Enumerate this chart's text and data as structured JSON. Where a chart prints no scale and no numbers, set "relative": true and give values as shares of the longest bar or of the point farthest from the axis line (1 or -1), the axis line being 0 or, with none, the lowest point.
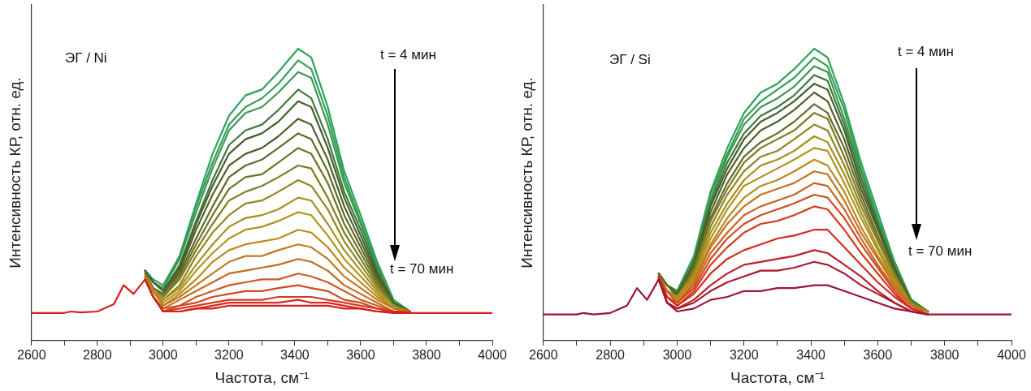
{
  "chart_data": [
    {
      "type": "line",
      "relative": true,
      "xlabel": "Частота, см⁻¹",
      "ylabel": "Интенсивность КР, отн. ед.",
      "annotations": [
        "ЭГ / Ni",
        "t = 4 мин",
        "t = 70 мин"
      ],
      "xlim": [
        2600,
        4000
      ],
      "xticks": [
        2600,
        {
          "value": 2700,
          "label": null
        },
        2800,
        {
          "value": 2900,
          "label": null
        },
        3000,
        {
          "value": 3100,
          "label": null
        },
        3200,
        {
          "value": 3300,
          "label": null
        },
        3400,
        {
          "value": 3500,
          "label": null
        },
        3600,
        {
          "value": 3700,
          "label": null
        },
        3800,
        {
          "value": 3900,
          "label": null
        },
        4000
      ],
      "x": [
        2600,
        2700,
        2720,
        2750,
        2800,
        2850,
        2880,
        2910,
        2945,
        2970,
        3000,
        3050,
        3100,
        3150,
        3200,
        3250,
        3300,
        3350,
        3410,
        3450,
        3500,
        3550,
        3600,
        3650,
        3700,
        3750,
        3800,
        3900,
        4000
      ],
      "series": [
        {
          "color": "#2ea35a",
          "values": [
            null,
            null,
            null,
            null,
            null,
            null,
            null,
            null,
            0.24,
            0.21,
            0.19,
            0.29,
            0.47,
            0.64,
            0.77,
            0.84,
            0.86,
            0.92,
            1.0,
            0.97,
            0.8,
            0.58,
            0.43,
            0.27,
            0.14,
            0.1,
            null,
            null,
            null
          ]
        },
        {
          "color": "#35a055",
          "values": [
            null,
            null,
            null,
            null,
            null,
            null,
            null,
            null,
            0.24,
            0.2,
            0.18,
            0.29,
            0.46,
            0.61,
            0.74,
            0.8,
            0.83,
            0.88,
            0.96,
            0.93,
            0.77,
            0.56,
            0.41,
            0.26,
            0.13,
            0.1,
            null,
            null,
            null
          ]
        },
        {
          "color": "#3c9650",
          "values": [
            null,
            null,
            null,
            null,
            null,
            null,
            null,
            null,
            0.24,
            0.2,
            0.18,
            0.28,
            0.44,
            0.59,
            0.72,
            0.78,
            0.8,
            0.85,
            0.92,
            0.9,
            0.74,
            0.54,
            0.4,
            0.25,
            0.13,
            0.1,
            null,
            null,
            null
          ]
        },
        {
          "color": "#3f7a3a",
          "values": [
            null,
            null,
            null,
            null,
            null,
            null,
            null,
            null,
            0.24,
            0.2,
            0.17,
            0.26,
            0.41,
            0.55,
            0.67,
            0.72,
            0.74,
            0.79,
            0.86,
            0.83,
            0.69,
            0.51,
            0.38,
            0.24,
            0.13,
            0.1,
            null,
            null,
            null
          ]
        },
        {
          "color": "#445f2c",
          "values": [
            null,
            null,
            null,
            null,
            null,
            null,
            null,
            null,
            0.24,
            0.2,
            0.17,
            0.25,
            0.4,
            0.53,
            0.64,
            0.69,
            0.71,
            0.75,
            0.82,
            0.8,
            0.66,
            0.49,
            0.36,
            0.23,
            0.13,
            0.1,
            null,
            null,
            null
          ]
        },
        {
          "color": "#4f5f28",
          "values": [
            null,
            null,
            null,
            null,
            null,
            null,
            null,
            null,
            0.23,
            0.18,
            0.16,
            0.24,
            0.38,
            0.5,
            0.6,
            0.64,
            0.66,
            0.7,
            0.76,
            0.74,
            0.62,
            0.46,
            0.34,
            0.22,
            0.13,
            0.1,
            null,
            null,
            null
          ]
        },
        {
          "color": "#5e6a25",
          "values": [
            null,
            null,
            null,
            null,
            null,
            null,
            null,
            null,
            0.23,
            0.18,
            0.16,
            0.23,
            0.35,
            0.46,
            0.56,
            0.6,
            0.62,
            0.66,
            0.71,
            0.69,
            0.58,
            0.43,
            0.32,
            0.21,
            0.12,
            0.1,
            null,
            null,
            null
          ]
        },
        {
          "color": "#6e7424",
          "values": [
            null,
            null,
            null,
            null,
            null,
            null,
            null,
            null,
            0.23,
            0.18,
            0.15,
            0.22,
            0.33,
            0.43,
            0.52,
            0.56,
            0.57,
            0.61,
            0.66,
            0.64,
            0.54,
            0.4,
            0.3,
            0.2,
            0.12,
            0.1,
            null,
            null,
            null
          ]
        },
        {
          "color": "#7f7d22",
          "values": [
            null,
            null,
            null,
            null,
            null,
            null,
            null,
            null,
            0.23,
            0.18,
            0.15,
            0.21,
            0.31,
            0.4,
            0.48,
            0.51,
            0.53,
            0.56,
            0.6,
            0.59,
            0.49,
            0.37,
            0.28,
            0.19,
            0.12,
            0.1,
            null,
            null,
            null
          ]
        },
        {
          "color": "#928720",
          "values": [
            null,
            null,
            null,
            null,
            null,
            null,
            null,
            null,
            0.22,
            0.17,
            0.14,
            0.19,
            0.29,
            0.37,
            0.43,
            0.47,
            0.48,
            0.51,
            0.55,
            0.53,
            0.45,
            0.34,
            0.26,
            0.18,
            0.12,
            0.1,
            null,
            null,
            null
          ]
        },
        {
          "color": "#a5901e",
          "values": [
            null,
            null,
            null,
            null,
            null,
            null,
            null,
            null,
            0.22,
            0.17,
            0.14,
            0.18,
            0.26,
            0.33,
            0.39,
            0.42,
            0.43,
            0.45,
            0.49,
            0.48,
            0.4,
            0.31,
            0.24,
            0.17,
            0.11,
            0.1,
            null,
            null,
            null
          ]
        },
        {
          "color": "#b2941c",
          "values": [
            null,
            null,
            null,
            null,
            null,
            null,
            null,
            null,
            0.22,
            0.17,
            0.13,
            0.17,
            0.24,
            0.3,
            0.35,
            0.38,
            0.39,
            0.41,
            0.44,
            0.43,
            0.36,
            0.28,
            0.22,
            0.16,
            0.11,
            0.1,
            null,
            null,
            null
          ]
        },
        {
          "color": "#bb8a1c",
          "values": [
            null,
            null,
            null,
            null,
            null,
            null,
            null,
            null,
            0.22,
            0.17,
            0.12,
            0.16,
            0.21,
            0.27,
            0.31,
            0.33,
            0.34,
            0.35,
            0.38,
            0.37,
            0.32,
            0.25,
            0.2,
            0.15,
            0.11,
            0.1,
            null,
            null,
            null
          ]
        },
        {
          "color": "#c07a1e",
          "values": [
            null,
            null,
            null,
            null,
            null,
            null,
            null,
            null,
            0.22,
            0.17,
            0.12,
            0.15,
            0.19,
            0.23,
            0.27,
            0.29,
            0.29,
            0.31,
            0.33,
            0.32,
            0.28,
            0.22,
            0.18,
            0.14,
            0.11,
            0.1,
            null,
            null,
            null
          ]
        },
        {
          "color": "#c66a20",
          "values": [
            null,
            null,
            null,
            null,
            null,
            null,
            null,
            null,
            0.21,
            0.15,
            0.11,
            0.14,
            0.17,
            0.2,
            0.23,
            0.24,
            0.25,
            0.26,
            0.28,
            0.27,
            0.24,
            0.19,
            0.16,
            0.13,
            0.1,
            0.1,
            null,
            null,
            null
          ]
        },
        {
          "color": "#cc5a20",
          "values": [
            null,
            null,
            null,
            null,
            null,
            null,
            null,
            null,
            0.21,
            0.15,
            0.11,
            0.12,
            0.15,
            0.17,
            0.19,
            0.2,
            0.21,
            0.21,
            0.23,
            0.22,
            0.2,
            0.17,
            0.14,
            0.12,
            0.1,
            0.1,
            null,
            null,
            null
          ]
        },
        {
          "color": "#d04a20",
          "values": [
            null,
            null,
            null,
            null,
            null,
            null,
            null,
            null,
            0.21,
            0.15,
            0.1,
            0.12,
            0.13,
            0.15,
            0.16,
            0.17,
            0.17,
            0.18,
            0.19,
            0.18,
            0.17,
            0.14,
            0.13,
            0.11,
            0.1,
            0.1,
            null,
            null,
            null
          ]
        },
        {
          "color": "#d43a20",
          "values": [
            null,
            null,
            null,
            null,
            null,
            null,
            null,
            null,
            0.21,
            0.15,
            0.1,
            0.11,
            0.12,
            0.13,
            0.14,
            0.14,
            0.14,
            0.15,
            0.15,
            0.15,
            0.14,
            0.13,
            0.12,
            0.11,
            0.1,
            0.095,
            null,
            null,
            null
          ]
        },
        {
          "color": "#d62a20",
          "values": [
            null,
            null,
            null,
            null,
            null,
            null,
            null,
            null,
            0.21,
            0.15,
            0.1,
            0.1,
            0.11,
            0.12,
            0.13,
            0.13,
            0.13,
            0.13,
            0.14,
            0.13,
            0.13,
            0.12,
            0.11,
            0.1,
            0.1,
            0.095,
            null,
            null,
            null
          ]
        },
        {
          "color": "#d81e1e",
          "values": [
            0.095,
            0.095,
            0.1,
            0.097,
            0.1,
            0.125,
            0.19,
            0.16,
            0.21,
            0.15,
            0.1,
            0.1,
            0.11,
            0.11,
            0.12,
            0.12,
            0.12,
            0.12,
            0.12,
            0.12,
            0.12,
            0.11,
            0.11,
            0.1,
            0.095,
            0.095,
            0.095,
            0.095,
            0.095
          ]
        }
      ]
    },
    {
      "type": "line",
      "relative": true,
      "xlabel": "Частота, см⁻¹",
      "ylabel": "Интенсивность КР, отн. ед.",
      "annotations": [
        "ЭГ / Si",
        "t = 4 мин",
        "t = 70 мин"
      ],
      "xlim": [
        2600,
        4000
      ],
      "xticks": [
        2600,
        {
          "value": 2700,
          "label": null
        },
        2800,
        {
          "value": 2900,
          "label": null
        },
        3000,
        {
          "value": 3100,
          "label": null
        },
        3200,
        {
          "value": 3300,
          "label": null
        },
        3400,
        {
          "value": 3500,
          "label": null
        },
        3600,
        {
          "value": 3700,
          "label": null
        },
        3800,
        {
          "value": 3900,
          "label": null
        },
        4000
      ],
      "x": [
        2600,
        2700,
        2720,
        2750,
        2800,
        2850,
        2880,
        2910,
        2945,
        2970,
        3000,
        3050,
        3100,
        3150,
        3200,
        3250,
        3300,
        3350,
        3410,
        3450,
        3500,
        3550,
        3600,
        3650,
        3700,
        3750,
        3800,
        3900,
        4000
      ],
      "series": [
        {
          "color": "#2ea35a",
          "values": [
            null,
            null,
            null,
            null,
            null,
            null,
            null,
            null,
            0.23,
            0.19,
            0.17,
            0.29,
            0.51,
            0.66,
            0.78,
            0.85,
            0.88,
            0.93,
            1.0,
            0.97,
            0.81,
            0.61,
            0.44,
            0.27,
            0.14,
            0.1,
            null,
            null,
            null
          ]
        },
        {
          "color": "#35a055",
          "values": [
            null,
            null,
            null,
            null,
            null,
            null,
            null,
            null,
            0.23,
            0.19,
            0.17,
            0.28,
            0.5,
            0.64,
            0.76,
            0.82,
            0.86,
            0.9,
            0.97,
            0.94,
            0.79,
            0.59,
            0.42,
            0.27,
            0.14,
            0.1,
            null,
            null,
            null
          ]
        },
        {
          "color": "#3c9650",
          "values": [
            null,
            null,
            null,
            null,
            null,
            null,
            null,
            null,
            0.23,
            0.19,
            0.17,
            0.28,
            0.48,
            0.63,
            0.74,
            0.8,
            0.83,
            0.87,
            0.94,
            0.92,
            0.76,
            0.58,
            0.41,
            0.26,
            0.14,
            0.1,
            null,
            null,
            null
          ]
        },
        {
          "color": "#3f7a3a",
          "values": [
            null,
            null,
            null,
            null,
            null,
            null,
            null,
            null,
            0.23,
            0.19,
            0.16,
            0.27,
            0.47,
            0.61,
            0.71,
            0.77,
            0.8,
            0.84,
            0.91,
            0.89,
            0.74,
            0.56,
            0.4,
            0.25,
            0.14,
            0.1,
            null,
            null,
            null
          ]
        },
        {
          "color": "#445f2c",
          "values": [
            null,
            null,
            null,
            null,
            null,
            null,
            null,
            null,
            0.23,
            0.19,
            0.16,
            0.26,
            0.46,
            0.59,
            0.69,
            0.75,
            0.78,
            0.82,
            0.88,
            0.86,
            0.72,
            0.54,
            0.39,
            0.25,
            0.13,
            0.1,
            null,
            null,
            null
          ]
        },
        {
          "color": "#50602a",
          "values": [
            null,
            null,
            null,
            null,
            null,
            null,
            null,
            null,
            0.23,
            0.19,
            0.16,
            0.26,
            0.44,
            0.57,
            0.66,
            0.72,
            0.75,
            0.79,
            0.85,
            0.82,
            0.69,
            0.52,
            0.38,
            0.24,
            0.13,
            0.1,
            null,
            null,
            null
          ]
        },
        {
          "color": "#646c26",
          "values": [
            null,
            null,
            null,
            null,
            null,
            null,
            null,
            null,
            0.23,
            0.19,
            0.15,
            0.25,
            0.42,
            0.54,
            0.63,
            0.68,
            0.71,
            0.75,
            0.81,
            0.78,
            0.66,
            0.5,
            0.36,
            0.23,
            0.13,
            0.1,
            null,
            null,
            null
          ]
        },
        {
          "color": "#7a7a22",
          "values": [
            null,
            null,
            null,
            null,
            null,
            null,
            null,
            null,
            0.22,
            0.17,
            0.15,
            0.24,
            0.41,
            0.52,
            0.61,
            0.66,
            0.69,
            0.72,
            0.78,
            0.76,
            0.63,
            0.48,
            0.35,
            0.23,
            0.13,
            0.1,
            null,
            null,
            null
          ]
        },
        {
          "color": "#90861f",
          "values": [
            null,
            null,
            null,
            null,
            null,
            null,
            null,
            null,
            0.22,
            0.17,
            0.15,
            0.23,
            0.39,
            0.5,
            0.58,
            0.63,
            0.65,
            0.69,
            0.74,
            0.72,
            0.6,
            0.46,
            0.34,
            0.22,
            0.13,
            0.1,
            null,
            null,
            null
          ]
        },
        {
          "color": "#a5901d",
          "values": [
            null,
            null,
            null,
            null,
            null,
            null,
            null,
            null,
            0.22,
            0.17,
            0.15,
            0.22,
            0.37,
            0.47,
            0.55,
            0.6,
            0.62,
            0.65,
            0.7,
            0.68,
            0.57,
            0.44,
            0.32,
            0.21,
            0.12,
            0.1,
            null,
            null,
            null
          ]
        },
        {
          "color": "#b2921c",
          "values": [
            null,
            null,
            null,
            null,
            null,
            null,
            null,
            null,
            0.22,
            0.17,
            0.14,
            0.22,
            0.35,
            0.45,
            0.53,
            0.56,
            0.59,
            0.62,
            0.66,
            0.65,
            0.54,
            0.42,
            0.31,
            0.2,
            0.12,
            0.1,
            null,
            null,
            null
          ]
        },
        {
          "color": "#bc861c",
          "values": [
            null,
            null,
            null,
            null,
            null,
            null,
            null,
            null,
            0.22,
            0.17,
            0.14,
            0.21,
            0.33,
            0.42,
            0.49,
            0.53,
            0.55,
            0.58,
            0.62,
            0.6,
            0.51,
            0.39,
            0.29,
            0.2,
            0.12,
            0.1,
            null,
            null,
            null
          ]
        },
        {
          "color": "#c4741e",
          "values": [
            null,
            null,
            null,
            null,
            null,
            null,
            null,
            null,
            0.22,
            0.17,
            0.13,
            0.2,
            0.32,
            0.4,
            0.46,
            0.5,
            0.52,
            0.54,
            0.58,
            0.57,
            0.48,
            0.37,
            0.28,
            0.19,
            0.12,
            0.1,
            null,
            null,
            null
          ]
        },
        {
          "color": "#ca6020",
          "values": [
            null,
            null,
            null,
            null,
            null,
            null,
            null,
            null,
            0.22,
            0.17,
            0.13,
            0.19,
            0.3,
            0.37,
            0.43,
            0.46,
            0.48,
            0.5,
            0.54,
            0.53,
            0.45,
            0.35,
            0.26,
            0.18,
            0.12,
            0.09,
            null,
            null,
            null
          ]
        },
        {
          "color": "#d04a20",
          "values": [
            null,
            null,
            null,
            null,
            null,
            null,
            null,
            null,
            0.22,
            0.15,
            0.13,
            0.18,
            0.28,
            0.35,
            0.4,
            0.43,
            0.45,
            0.47,
            0.5,
            0.49,
            0.42,
            0.33,
            0.25,
            0.17,
            0.11,
            0.09,
            null,
            null,
            null
          ]
        },
        {
          "color": "#d63a1e",
          "values": [
            null,
            null,
            null,
            null,
            null,
            null,
            null,
            null,
            0.22,
            0.15,
            0.12,
            0.17,
            0.26,
            0.32,
            0.37,
            0.4,
            0.41,
            0.43,
            0.46,
            0.45,
            0.38,
            0.3,
            0.23,
            0.16,
            0.11,
            0.09,
            null,
            null,
            null
          ]
        },
        {
          "color": "#d42a22",
          "values": [
            null,
            null,
            null,
            null,
            null,
            null,
            null,
            null,
            0.22,
            0.15,
            0.12,
            0.16,
            0.23,
            0.28,
            0.31,
            0.33,
            0.35,
            0.36,
            0.38,
            0.38,
            0.32,
            0.26,
            0.2,
            0.15,
            0.11,
            0.09,
            null,
            null,
            null
          ]
        },
        {
          "color": "#c0202a",
          "values": [
            null,
            null,
            null,
            null,
            null,
            null,
            null,
            null,
            0.21,
            0.13,
            0.11,
            0.14,
            0.19,
            0.23,
            0.26,
            0.27,
            0.28,
            0.29,
            0.31,
            0.3,
            0.26,
            0.22,
            0.17,
            0.13,
            0.1,
            0.09,
            null,
            null,
            null
          ]
        },
        {
          "color": "#a81a30",
          "values": [
            null,
            null,
            null,
            null,
            null,
            null,
            null,
            null,
            0.21,
            0.13,
            0.11,
            0.13,
            0.17,
            0.2,
            0.22,
            0.24,
            0.24,
            0.25,
            0.27,
            0.26,
            0.23,
            0.19,
            0.16,
            0.13,
            0.1,
            0.09,
            null,
            null,
            null
          ]
        },
        {
          "color": "#9a1632",
          "values": [
            0.09,
            0.09,
            0.095,
            0.09,
            0.095,
            0.12,
            0.18,
            0.14,
            0.21,
            0.13,
            0.1,
            0.11,
            0.14,
            0.15,
            0.17,
            0.17,
            0.18,
            0.18,
            0.19,
            0.19,
            0.17,
            0.15,
            0.13,
            0.11,
            0.1,
            0.09,
            0.09,
            0.09,
            0.09
          ]
        }
      ]
    }
  ]
}
